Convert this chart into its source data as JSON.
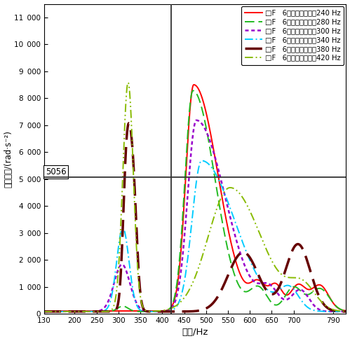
{
  "xlabel": "频率/Hz",
  "ylabel": "角加速度/(rad·s⁻²)",
  "xlim": [
    130,
    820
  ],
  "ylim": [
    0,
    11500
  ],
  "yticks": [
    0,
    1000,
    2000,
    3000,
    4000,
    5000,
    6000,
    7000,
    8000,
    9000,
    10000,
    11000
  ],
  "xticks": [
    130,
    200,
    250,
    300,
    350,
    400,
    450,
    500,
    550,
    600,
    650,
    700,
    790
  ],
  "hline_y": 5056,
  "vline_x": 420,
  "hline_label": "5056",
  "series": [
    {
      "label": "6阶齿圈角加速度240 Hz",
      "color": "#FF0000"
    },
    {
      "label": "6阶齿圈角加速度280 Hz",
      "color": "#22BB22"
    },
    {
      "label": "6阶齿圈角加速度300 Hz",
      "color": "#9900CC"
    },
    {
      "label": "6阶齿圈角加速度340 Hz",
      "color": "#00CCFF"
    },
    {
      "label": "6阶齿圈角加速度380 Hz",
      "color": "#660000"
    },
    {
      "label": "6阶齿圈角加速度420 Hz",
      "color": "#88BB00"
    }
  ],
  "bg_color": "#FFFFFF"
}
